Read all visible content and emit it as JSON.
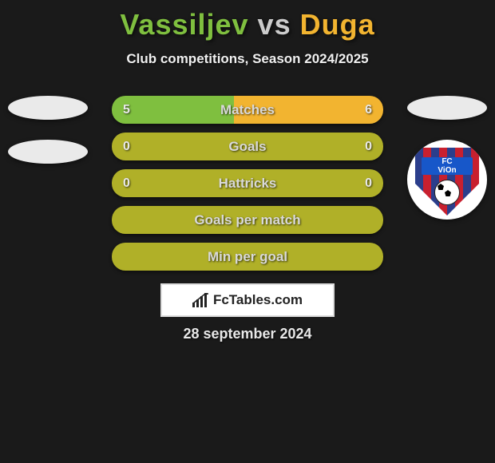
{
  "title": {
    "player1": "Vassiljev",
    "vs": "vs",
    "player2": "Duga",
    "color_p1": "#7fbf3f",
    "color_vs": "#cccccc",
    "color_p2": "#f2b430"
  },
  "subtitle": "Club competitions, Season 2024/2025",
  "colors": {
    "left_fill": "#7fbf3f",
    "right_fill": "#f2b430",
    "empty_fill": "#b0b028",
    "background": "#1a1a1a"
  },
  "rows": [
    {
      "label": "Matches",
      "left_val": "5",
      "right_val": "6",
      "left_pct": 45,
      "right_pct": 55,
      "show_vals": true,
      "split": true
    },
    {
      "label": "Goals",
      "left_val": "0",
      "right_val": "0",
      "left_pct": 50,
      "right_pct": 50,
      "show_vals": true,
      "split": false
    },
    {
      "label": "Hattricks",
      "left_val": "0",
      "right_val": "0",
      "left_pct": 50,
      "right_pct": 50,
      "show_vals": true,
      "split": false
    },
    {
      "label": "Goals per match",
      "left_val": "",
      "right_val": "",
      "left_pct": 50,
      "right_pct": 50,
      "show_vals": false,
      "split": false
    },
    {
      "label": "Min per goal",
      "left_val": "",
      "right_val": "",
      "left_pct": 50,
      "right_pct": 50,
      "show_vals": false,
      "split": false
    }
  ],
  "club_logo": {
    "line1": "FC",
    "line2": "ViOn"
  },
  "branding": {
    "text": "FcTables.com"
  },
  "date": "28 september 2024"
}
